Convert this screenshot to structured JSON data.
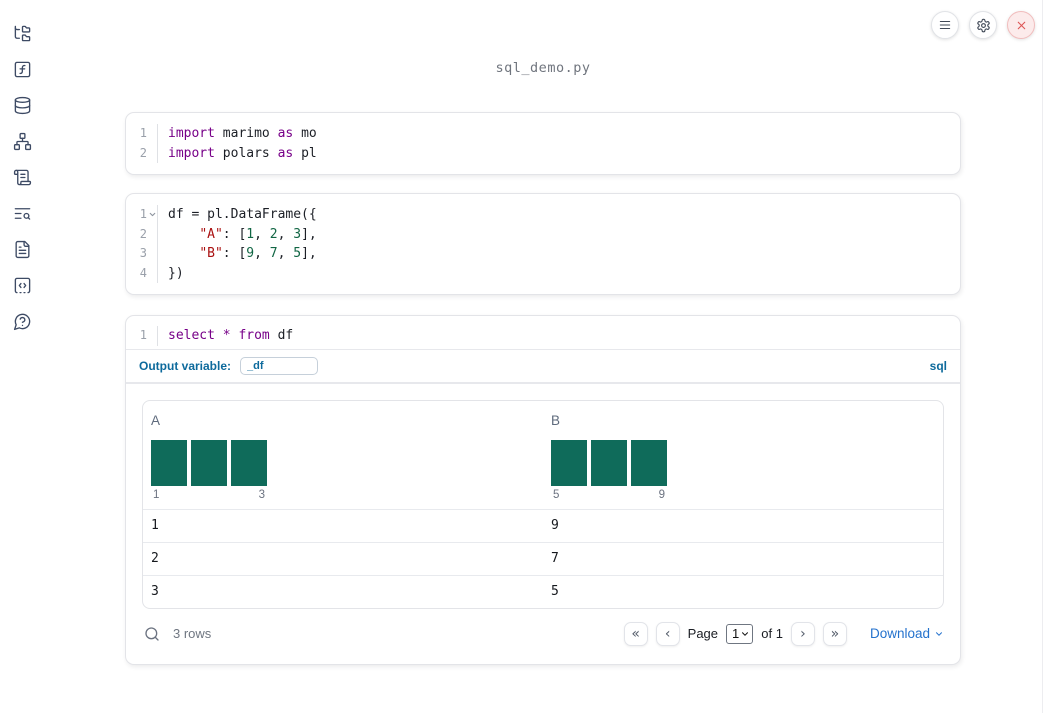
{
  "app": {
    "filename": "sql_demo.py"
  },
  "colors": {
    "keyword": "#770088",
    "string": "#aa1111",
    "number": "#116644",
    "accent_blue": "#0d6a9c",
    "histogram": "#0f6b5a",
    "download_link": "#2472cd",
    "shutdown_red": "#dd5555"
  },
  "topbar": {
    "buttons": [
      {
        "id": "menu"
      },
      {
        "id": "settings"
      },
      {
        "id": "shutdown"
      }
    ]
  },
  "sidebar": {
    "items": [
      {
        "id": "file-explorer",
        "icon": "folder-tree-icon"
      },
      {
        "id": "variables",
        "icon": "function-square-icon"
      },
      {
        "id": "data-sources",
        "icon": "database-icon"
      },
      {
        "id": "dependencies",
        "icon": "network-icon"
      },
      {
        "id": "logs",
        "icon": "scroll-text-icon"
      },
      {
        "id": "tracing",
        "icon": "text-search-icon"
      },
      {
        "id": "documentation",
        "icon": "file-text-icon"
      },
      {
        "id": "snippets",
        "icon": "code-square-icon"
      },
      {
        "id": "help",
        "icon": "help-bubble-icon"
      }
    ]
  },
  "cells": [
    {
      "name": "imports-cell",
      "lines": [
        {
          "num": "1",
          "tokens": [
            [
              "kw",
              "import"
            ],
            [
              "pl",
              " marimo "
            ],
            [
              "kw",
              "as"
            ],
            [
              "pl",
              " mo"
            ]
          ]
        },
        {
          "num": "2",
          "tokens": [
            [
              "kw",
              "import"
            ],
            [
              "pl",
              " polars "
            ],
            [
              "kw",
              "as"
            ],
            [
              "pl",
              " pl"
            ]
          ]
        }
      ]
    },
    {
      "name": "dataframe-cell",
      "lines": [
        {
          "num": "1",
          "fold": true,
          "tokens": [
            [
              "pl",
              "df = pl.DataFrame({"
            ]
          ]
        },
        {
          "num": "2",
          "tokens": [
            [
              "pl",
              "    "
            ],
            [
              "str",
              "\"A\""
            ],
            [
              "pl",
              ": ["
            ],
            [
              "num",
              "1"
            ],
            [
              "pl",
              ", "
            ],
            [
              "num",
              "2"
            ],
            [
              "pl",
              ", "
            ],
            [
              "num",
              "3"
            ],
            [
              "pl",
              "],"
            ]
          ]
        },
        {
          "num": "3",
          "tokens": [
            [
              "pl",
              "    "
            ],
            [
              "str",
              "\"B\""
            ],
            [
              "pl",
              ": ["
            ],
            [
              "num",
              "9"
            ],
            [
              "pl",
              ", "
            ],
            [
              "num",
              "7"
            ],
            [
              "pl",
              ", "
            ],
            [
              "num",
              "5"
            ],
            [
              "pl",
              "],"
            ]
          ]
        },
        {
          "num": "4",
          "tokens": [
            [
              "pl",
              "})"
            ]
          ]
        }
      ]
    },
    {
      "name": "sql-cell",
      "lines": [
        {
          "num": "1",
          "tokens": [
            [
              "kw",
              "select"
            ],
            [
              "pl",
              " "
            ],
            [
              "kw",
              "*"
            ],
            [
              "pl",
              " "
            ],
            [
              "kw",
              "from"
            ],
            [
              "pl",
              " df"
            ]
          ]
        }
      ]
    }
  ],
  "sql_cell": {
    "output_variable_label": "Output variable:",
    "output_variable_value": "_df",
    "language_label": "sql"
  },
  "output_table": {
    "columns": [
      {
        "name": "A",
        "histogram": {
          "values": [
            1,
            1,
            1
          ],
          "min_label": "1",
          "max_label": "3"
        }
      },
      {
        "name": "B",
        "histogram": {
          "values": [
            1,
            1,
            1
          ],
          "min_label": "5",
          "max_label": "9"
        }
      }
    ],
    "rows": [
      [
        "1",
        "9"
      ],
      [
        "2",
        "7"
      ],
      [
        "3",
        "5"
      ]
    ],
    "footer": {
      "row_count": "3 rows",
      "page_label": "Page",
      "page_value": "1",
      "page_of": "of 1",
      "download_label": "Download"
    }
  }
}
